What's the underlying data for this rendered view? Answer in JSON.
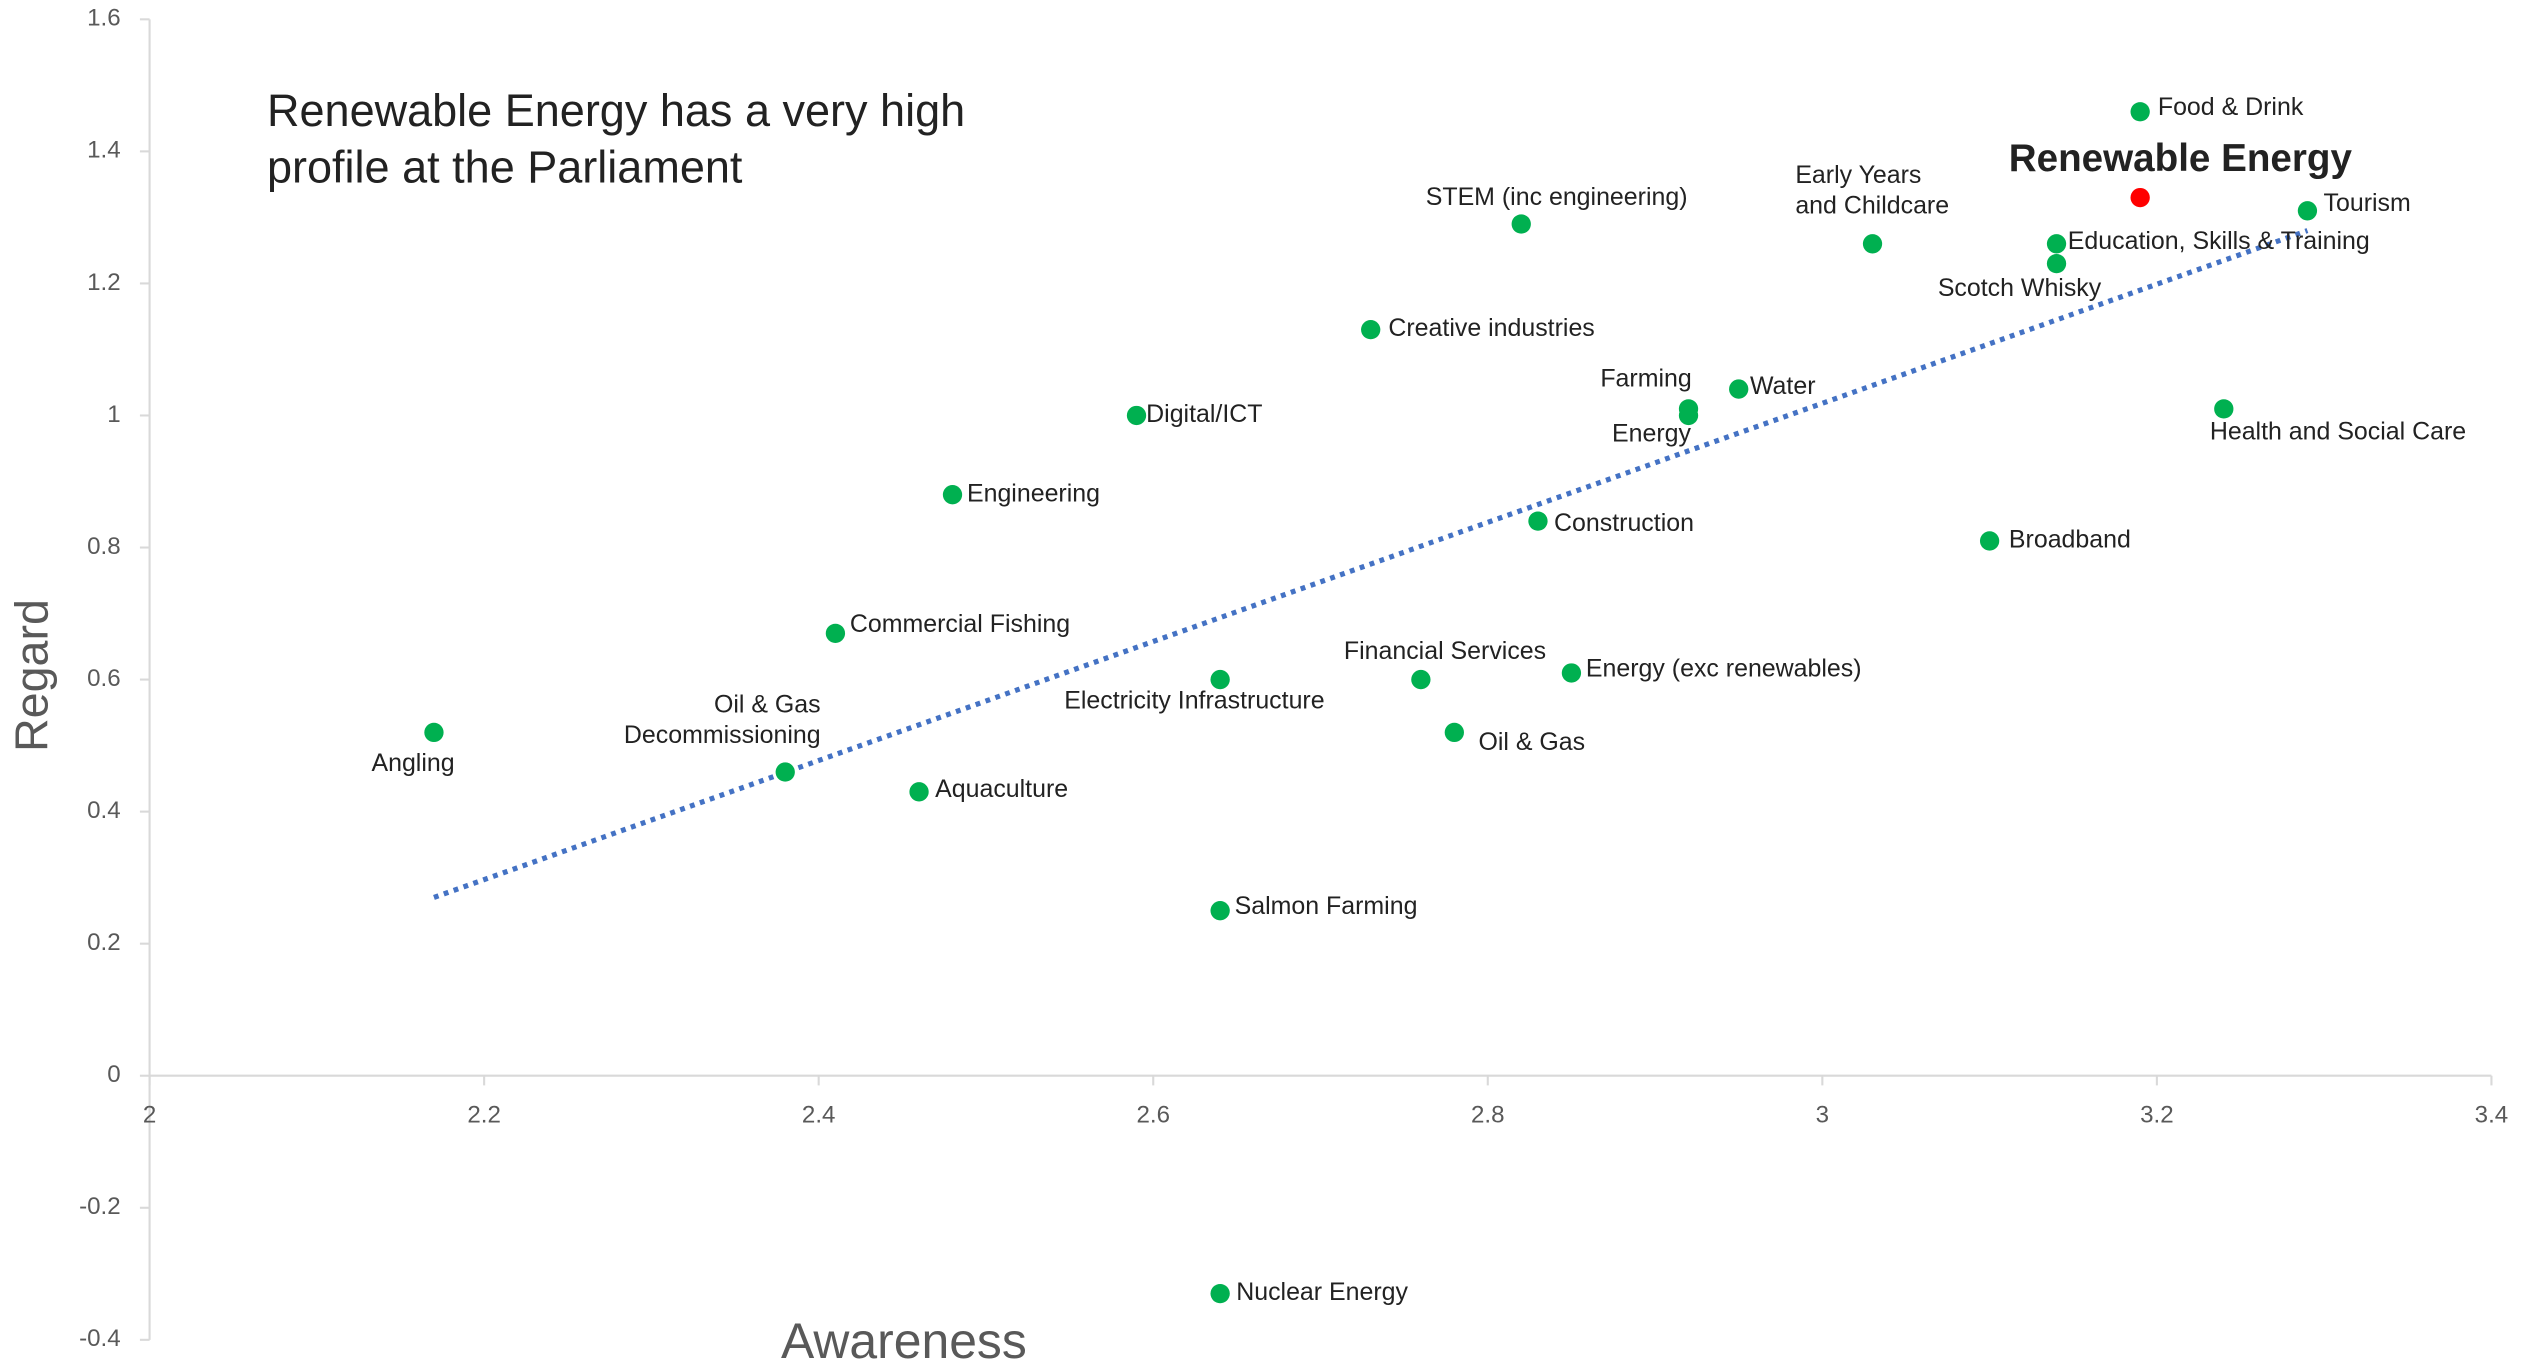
{
  "chart_data": {
    "type": "scatter",
    "annotation": [
      "Renewable Energy has a very high",
      "profile at the Parliament"
    ],
    "x_label": "Awareness",
    "y_label": "Regard",
    "labels": [
      "Angling",
      [
        "Oil & Gas",
        "Decommissioning"
      ],
      "Commercial Fishing",
      "Aquaculture",
      "Engineering",
      "Digital/ICT",
      "Electricity Infrastructure",
      "Salmon Farming",
      "Nuclear Energy",
      "Creative industries",
      "Financial Services",
      "Oil & Gas",
      "STEM (inc engineering)",
      "Construction",
      "Energy (exc renewables)",
      "Farming",
      "Energy",
      "Water",
      [
        "Early Years",
        "and Childcare"
      ],
      "Broadband",
      "Education, Skills & Training",
      "Scotch Whisky",
      "Renewable Energy",
      "Food & Drink",
      "Health and Social Care",
      "Tourism"
    ],
    "x": [
      2.17,
      2.38,
      2.41,
      2.46,
      2.48,
      2.59,
      2.64,
      2.64,
      2.64,
      2.73,
      2.76,
      2.78,
      2.82,
      2.83,
      2.85,
      2.92,
      2.92,
      2.95,
      3.03,
      3.1,
      3.14,
      3.14,
      3.19,
      3.19,
      3.24,
      3.29
    ],
    "values": [
      0.52,
      0.46,
      0.67,
      0.43,
      0.88,
      1.0,
      0.6,
      0.25,
      -0.33,
      1.13,
      0.6,
      0.52,
      1.29,
      0.84,
      0.61,
      1.01,
      1.0,
      1.04,
      1.26,
      0.81,
      1.26,
      1.23,
      1.33,
      1.46,
      1.01,
      1.31
    ],
    "color": "#00b050",
    "highlight": {
      "index": 22,
      "color": "#ff0000"
    },
    "trendline": {
      "x": [
        2.17,
        3.29
      ],
      "y": [
        0.27,
        1.28
      ],
      "color": "#4472c4",
      "style": "dotted"
    },
    "xlim": [
      2,
      3.4
    ],
    "xticks": [
      2,
      2.2,
      2.4,
      2.6,
      2.8,
      3,
      3.2,
      3.4
    ],
    "ylim": [
      -0.4,
      1.6
    ],
    "yticks": [
      -0.4,
      -0.2,
      0,
      0.2,
      0.4,
      0.6,
      0.8,
      1,
      1.2,
      1.4,
      1.6
    ]
  }
}
